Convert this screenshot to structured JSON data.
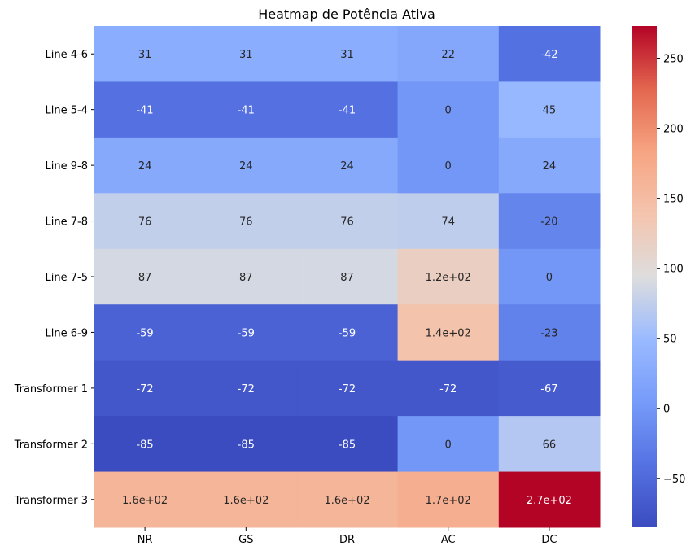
{
  "chart_data": {
    "type": "heatmap",
    "title": "Heatmap de Potência Ativa",
    "rows": [
      "Line 4-6",
      "Line 5-4",
      "Line 9-8",
      "Line 7-8",
      "Line 7-5",
      "Line 6-9",
      "Transformer 1",
      "Transformer 2",
      "Transformer 3"
    ],
    "columns": [
      "NR",
      "GS",
      "DR",
      "AC",
      "DC"
    ],
    "values": [
      [
        31,
        31,
        31,
        22,
        -42
      ],
      [
        -41,
        -41,
        -41,
        0,
        45
      ],
      [
        24,
        24,
        24,
        0,
        24
      ],
      [
        76,
        76,
        76,
        74,
        -20
      ],
      [
        87,
        87,
        87,
        120,
        0
      ],
      [
        -59,
        -59,
        -59,
        140,
        -23
      ],
      [
        -72,
        -72,
        -72,
        -72,
        -67
      ],
      [
        -85,
        -85,
        -85,
        0,
        66
      ],
      [
        160,
        160,
        160,
        170,
        273
      ]
    ],
    "annotations": [
      [
        "31",
        "31",
        "31",
        "22",
        "-42"
      ],
      [
        "-41",
        "-41",
        "-41",
        "0",
        "45"
      ],
      [
        "24",
        "24",
        "24",
        "0",
        "24"
      ],
      [
        "76",
        "76",
        "76",
        "74",
        "-20"
      ],
      [
        "87",
        "87",
        "87",
        "1.2e+02",
        "0"
      ],
      [
        "-59",
        "-59",
        "-59",
        "1.4e+02",
        "-23"
      ],
      [
        "-72",
        "-72",
        "-72",
        "-72",
        "-67"
      ],
      [
        "-85",
        "-85",
        "-85",
        "0",
        "66"
      ],
      [
        "1.6e+02",
        "1.6e+02",
        "1.6e+02",
        "1.7e+02",
        "2.7e+02"
      ]
    ],
    "colormap": "coolwarm",
    "colorbar": {
      "range": [
        -85,
        273
      ],
      "ticks": [
        -50,
        0,
        50,
        100,
        150,
        200,
        250
      ],
      "tick_labels": [
        "−50",
        "0",
        "50",
        "100",
        "150",
        "200",
        "250"
      ]
    }
  }
}
